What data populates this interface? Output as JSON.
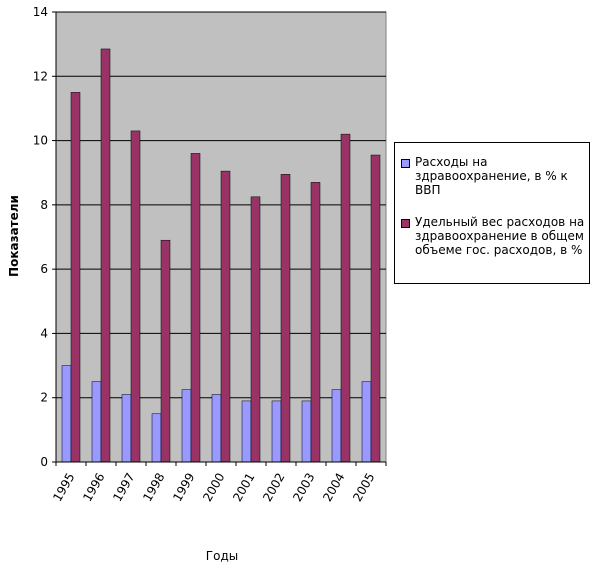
{
  "chart_data": {
    "type": "bar",
    "y_label": "Показатели",
    "x_label": "Годы",
    "categories": [
      "1995",
      "1996",
      "1997",
      "1998",
      "1999",
      "2000",
      "2001",
      "2002",
      "2003",
      "2004",
      "2005"
    ],
    "series": [
      {
        "name": "Расходы на здравоохранение, в % к ВВП",
        "color": "#9999ff",
        "values": [
          3.0,
          2.5,
          2.1,
          1.5,
          2.25,
          2.1,
          1.9,
          1.9,
          1.9,
          2.25,
          2.5
        ]
      },
      {
        "name": "Удельный вес расходов на здравоохранение в общем объеме гос. расходов, в %",
        "color": "#993366",
        "values": [
          11.5,
          12.85,
          10.3,
          6.9,
          9.6,
          9.05,
          8.25,
          8.95,
          8.7,
          10.2,
          9.55
        ]
      }
    ],
    "ylim": [
      0,
      14
    ],
    "yticks": [
      0,
      2,
      4,
      6,
      8,
      10,
      12,
      14
    ],
    "grid": true,
    "plot_background": "#c0c0c0"
  }
}
